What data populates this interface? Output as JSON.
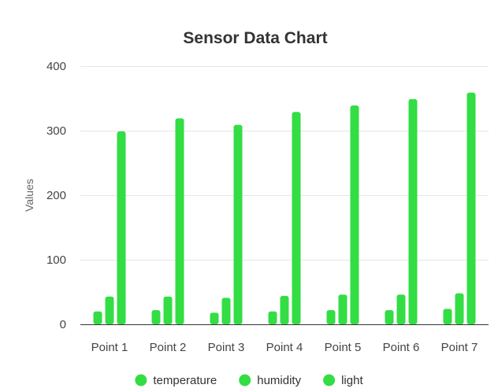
{
  "chart_data": {
    "type": "bar",
    "title": "Sensor Data Chart",
    "xlabel": "",
    "ylabel": "Values",
    "ylim": [
      0,
      400
    ],
    "yticks": [
      0,
      100,
      200,
      300,
      400
    ],
    "grid": true,
    "legend_position": "bottom",
    "categories": [
      "Point 1",
      "Point 2",
      "Point 3",
      "Point 4",
      "Point 5",
      "Point 6",
      "Point 7"
    ],
    "series": [
      {
        "name": "temperature",
        "color": "#33dd44",
        "values": [
          20,
          22,
          18,
          20,
          22,
          22,
          24
        ]
      },
      {
        "name": "humidity",
        "color": "#33dd44",
        "values": [
          43,
          43,
          41,
          44,
          46,
          46,
          48
        ]
      },
      {
        "name": "light",
        "color": "#33dd44",
        "values": [
          299,
          319,
          309,
          329,
          339,
          349,
          359
        ]
      }
    ]
  }
}
